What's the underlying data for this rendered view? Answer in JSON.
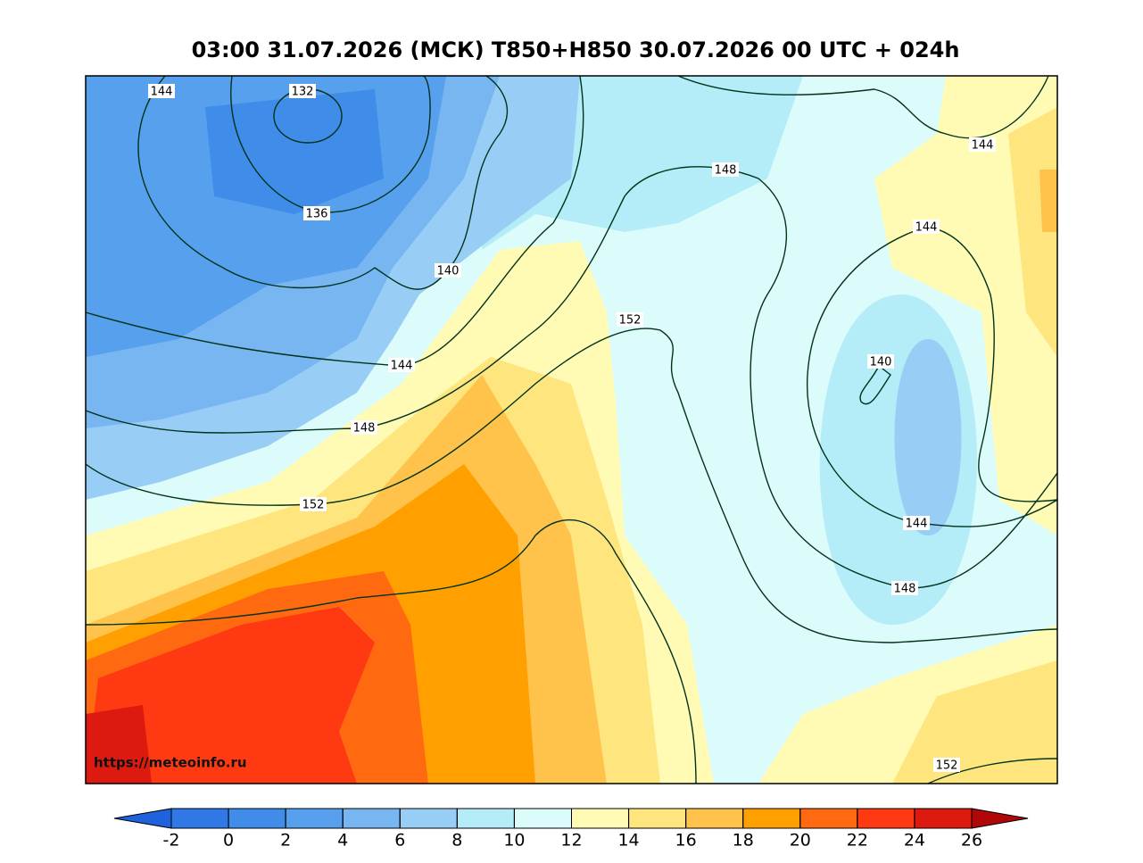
{
  "title": "03:00 31.07.2026 (МСК) T850+H850 30.07.2026 00 UTC + 024h",
  "url": "https://meteoinfo.ru",
  "contour_labels": [
    144,
    132,
    136,
    140,
    148,
    144,
    144,
    152,
    140,
    144,
    148,
    152,
    144,
    148,
    152
  ],
  "colorbar": {
    "ticks": [
      -2,
      0,
      2,
      4,
      6,
      8,
      10,
      12,
      14,
      16,
      18,
      20,
      22,
      24,
      26
    ],
    "colors": [
      "#1f62dc",
      "#2f78e6",
      "#3f8ce9",
      "#56a0ee",
      "#78b6f2",
      "#98cef6",
      "#b4ecf7",
      "#dcfcfc",
      "#fffab4",
      "#ffe57e",
      "#ffc24a",
      "#ffa000",
      "#ff6a10",
      "#ff3a12",
      "#dc1a10",
      "#b00808"
    ]
  }
}
